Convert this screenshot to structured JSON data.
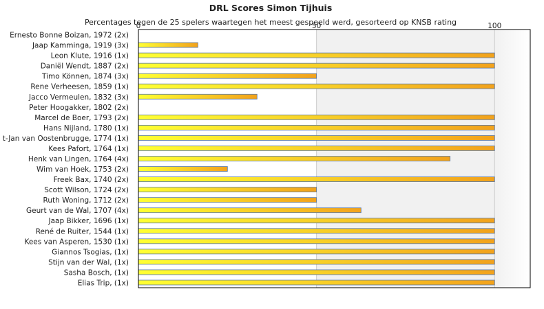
{
  "chart_data": {
    "type": "bar",
    "orientation": "horizontal",
    "title": "DRL Scores Simon Tijhuis",
    "subtitle": "Percentages tegen de 25 spelers waartegen het meest gespeeld werd, gesorteerd op KNSB rating",
    "xlim": [
      0,
      110
    ],
    "xticks": [
      "0",
      "50",
      "100"
    ],
    "grid": true,
    "categories": [
      "Ernesto Bonne Boizan, 1972 (2x)",
      "Jaap Kamminga, 1919 (3x)",
      "Leon Klute, 1916 (1x)",
      "Daniël Wendt, 1887 (2x)",
      "Timo Können, 1874 (3x)",
      "Rene Verheesen, 1859 (1x)",
      "Jacco Vermeulen, 1832 (3x)",
      "Peter Hoogakker, 1802 (2x)",
      "Marcel de Boer, 1793 (2x)",
      "Hans Nijland, 1780 (1x)",
      "t-Jan van Oostenbrugge, 1774 (1x)",
      "Kees Pafort, 1764 (1x)",
      "Henk van Lingen, 1764 (4x)",
      "Wim van Hoek, 1753 (2x)",
      "Freek Bax, 1740 (2x)",
      "Scott Wilson, 1724 (2x)",
      "Ruth Woning, 1712 (2x)",
      "Geurt van de Wal, 1707 (4x)",
      "Jaap Bikker, 1696 (1x)",
      "René de Ruiter, 1544 (1x)",
      "Kees van Asperen, 1530 (1x)",
      "Giannos Tsogias,  (1x)",
      "Stijn van der Wal,  (1x)",
      "Sasha Bosch,  (1x)",
      "Elias Trip,  (1x)"
    ],
    "values": [
      0,
      16.7,
      100,
      100,
      50,
      100,
      33.3,
      0,
      100,
      100,
      100,
      100,
      87.5,
      25,
      100,
      50,
      50,
      62.5,
      100,
      100,
      100,
      100,
      100,
      100,
      100
    ],
    "colors": {
      "bar_light": "#ffff33",
      "bar_dark": "#f2a21c",
      "bar_border": "#5577aa",
      "band_shade": "#f1f1f1",
      "grid": "#cccccc",
      "frame": "#000000"
    }
  }
}
